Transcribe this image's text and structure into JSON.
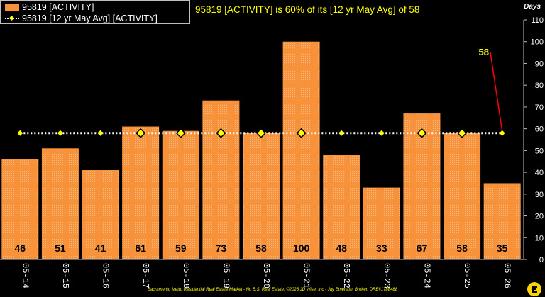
{
  "headline": "95819 [ACTIVITY] is 60% of its [12 yr May Avg] of 58",
  "footer": "Sacramento Metro Residential Real Estate Market - No B.S. Real Estate, ©2026 JD Wise, Inc - Jay Emerson, Broker, DRE#1788488",
  "colors": {
    "bar": "#f7923a",
    "avg_line": "#ffffff",
    "marker": "#ffff00",
    "callout": "#ff0000",
    "text": "#ffffff",
    "label": "#000000"
  },
  "chart_data": {
    "type": "bar",
    "categories": [
      "05-14",
      "05-15",
      "05-16",
      "05-17",
      "05-18",
      "05-19",
      "05-20",
      "05-21",
      "05-22",
      "05-23",
      "05-24",
      "05-25",
      "05-26"
    ],
    "series": [
      {
        "name": "95819 [ACTIVITY]",
        "type": "bar",
        "values": [
          46,
          51,
          41,
          61,
          59,
          73,
          58,
          100,
          48,
          33,
          67,
          58,
          35
        ]
      },
      {
        "name": "95819 [12 yr May Avg] [ACTIVITY]",
        "type": "line",
        "values": [
          58,
          58,
          58,
          58,
          58,
          58,
          58,
          58,
          58,
          58,
          58,
          58,
          58
        ]
      }
    ],
    "data_labels": [
      "46",
      "51",
      "41",
      "61",
      "59",
      "73",
      "58",
      "100",
      "48",
      "33",
      "67",
      "58",
      "35"
    ],
    "ylabel": "Days",
    "yticks": [
      0,
      10,
      20,
      30,
      40,
      50,
      60,
      70,
      80,
      90,
      100,
      110
    ],
    "ylim": [
      0,
      110
    ],
    "callout": {
      "label": "58",
      "category": "05-26",
      "value": 58
    },
    "legend_position": "top-left",
    "grid": false
  }
}
